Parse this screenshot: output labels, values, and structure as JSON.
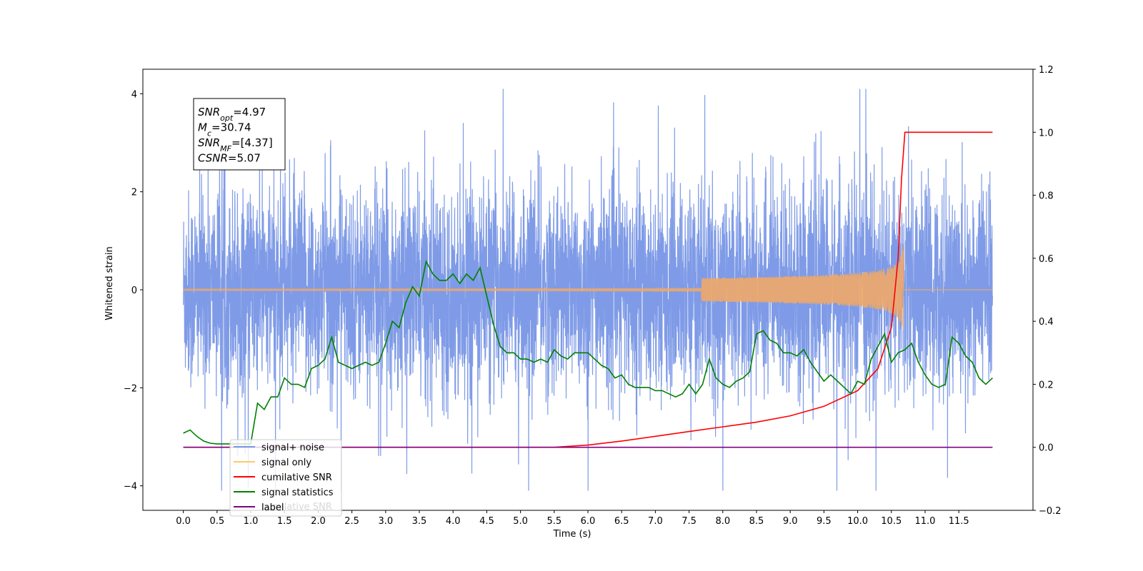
{
  "chart_data": {
    "type": "line",
    "xlabel": "Time (s)",
    "ylabel": "Whitened strain",
    "xlim": [
      -0.6,
      12.6
    ],
    "ylim": [
      -4.5,
      4.5
    ],
    "y2lim": [
      -0.2,
      1.2
    ],
    "xticks": [
      "0.0",
      "0.5",
      "1.0",
      "1.5",
      "2.0",
      "2.5",
      "3.0",
      "3.5",
      "4.0",
      "4.5",
      "5.0",
      "5.5",
      "6.0",
      "6.5",
      "7.0",
      "7.5",
      "8.0",
      "8.5",
      "9.0",
      "9.5",
      "10.0",
      "10.5",
      "11.0",
      "11.5"
    ],
    "yticks": [
      "−4",
      "−2",
      "0",
      "2",
      "4"
    ],
    "y2ticks": [
      "−0.2",
      "0.0",
      "0.2",
      "0.4",
      "0.6",
      "0.8",
      "1.0",
      "1.2"
    ],
    "annotation": {
      "lines": [
        {
          "sym": "SNR",
          "sub": "opt",
          "val": "=4.97"
        },
        {
          "sym": "M",
          "sub": "c",
          "val": "=30.74"
        },
        {
          "sym": "SNR",
          "sub": "MF",
          "val": "=[4.37]"
        },
        {
          "sym": "CSNR",
          "sub": "",
          "val": "=5.07"
        }
      ]
    },
    "legend": {
      "placement": "lower-left",
      "entries": [
        {
          "label": "signal+ noise",
          "color": "#7896e6"
        },
        {
          "label": "signal only",
          "color": "#ffc864"
        },
        {
          "label": "cumilative SNR",
          "color": "#ff0000"
        },
        {
          "label": "signal statistics",
          "color": "#008000"
        },
        {
          "label": "label",
          "color": "#800080"
        }
      ],
      "hidden_label": "cumilative SNR"
    },
    "series": [
      {
        "name": "signal+ noise",
        "axis": "left",
        "color": "#7896e6",
        "x_range": [
          0.0,
          12.0
        ],
        "envelope": {
          "typical_amplitude": 1.0,
          "max": 4.1,
          "min": -4.1
        }
      },
      {
        "name": "signal only",
        "axis": "left",
        "color": "#f0a868",
        "x_range": [
          0.0,
          12.0
        ],
        "chirp_end": 10.68,
        "peak_amplitude": 1.25
      },
      {
        "name": "cumilative SNR",
        "axis": "right",
        "color": "#ff0000",
        "x": [
          0.0,
          5.5,
          6.0,
          6.5,
          7.0,
          7.5,
          8.0,
          8.5,
          9.0,
          9.5,
          10.0,
          10.3,
          10.5,
          10.6,
          10.65,
          10.7,
          11.0,
          11.5,
          12.0
        ],
        "y": [
          0.0,
          0.0,
          0.007,
          0.02,
          0.035,
          0.05,
          0.065,
          0.08,
          0.1,
          0.13,
          0.18,
          0.25,
          0.38,
          0.6,
          0.85,
          1.0,
          1.0,
          1.0,
          1.0
        ]
      },
      {
        "name": "signal statistics",
        "axis": "right",
        "color": "#008000",
        "x": [
          0.0,
          0.1,
          0.2,
          0.3,
          0.4,
          0.5,
          0.6,
          0.7,
          0.8,
          0.9,
          1.0,
          1.1,
          1.2,
          1.3,
          1.4,
          1.5,
          1.6,
          1.7,
          1.8,
          1.9,
          2.0,
          2.1,
          2.2,
          2.3,
          2.4,
          2.5,
          2.6,
          2.7,
          2.8,
          2.9,
          3.0,
          3.1,
          3.2,
          3.3,
          3.4,
          3.5,
          3.6,
          3.7,
          3.8,
          3.9,
          4.0,
          4.1,
          4.2,
          4.3,
          4.4,
          4.5,
          4.6,
          4.7,
          4.8,
          4.9,
          5.0,
          5.1,
          5.2,
          5.3,
          5.4,
          5.5,
          5.6,
          5.7,
          5.8,
          5.9,
          6.0,
          6.1,
          6.2,
          6.3,
          6.4,
          6.5,
          6.6,
          6.7,
          6.8,
          6.9,
          7.0,
          7.1,
          7.2,
          7.3,
          7.4,
          7.5,
          7.6,
          7.7,
          7.8,
          7.9,
          8.0,
          8.1,
          8.2,
          8.3,
          8.4,
          8.5,
          8.6,
          8.7,
          8.8,
          8.9,
          9.0,
          9.1,
          9.2,
          9.3,
          9.4,
          9.5,
          9.6,
          9.7,
          9.8,
          9.9,
          10.0,
          10.1,
          10.2,
          10.3,
          10.4,
          10.5,
          10.6,
          10.7,
          10.8,
          10.9,
          11.0,
          11.1,
          11.2,
          11.3,
          11.4,
          11.5,
          11.6,
          11.7,
          11.8,
          11.9,
          12.0
        ],
        "y": [
          0.045,
          0.055,
          0.035,
          0.02,
          0.013,
          0.011,
          0.011,
          0.011,
          0.011,
          0.011,
          0.011,
          0.14,
          0.12,
          0.16,
          0.16,
          0.22,
          0.2,
          0.2,
          0.19,
          0.25,
          0.26,
          0.28,
          0.35,
          0.27,
          0.26,
          0.25,
          0.26,
          0.27,
          0.26,
          0.27,
          0.33,
          0.4,
          0.38,
          0.46,
          0.51,
          0.48,
          0.59,
          0.55,
          0.53,
          0.53,
          0.55,
          0.52,
          0.55,
          0.53,
          0.57,
          0.48,
          0.39,
          0.32,
          0.3,
          0.3,
          0.28,
          0.28,
          0.27,
          0.28,
          0.27,
          0.31,
          0.29,
          0.28,
          0.3,
          0.3,
          0.3,
          0.28,
          0.26,
          0.25,
          0.22,
          0.23,
          0.2,
          0.19,
          0.19,
          0.19,
          0.18,
          0.18,
          0.17,
          0.16,
          0.17,
          0.2,
          0.17,
          0.2,
          0.28,
          0.22,
          0.2,
          0.19,
          0.21,
          0.22,
          0.24,
          0.36,
          0.37,
          0.34,
          0.33,
          0.3,
          0.3,
          0.29,
          0.31,
          0.27,
          0.24,
          0.21,
          0.23,
          0.21,
          0.19,
          0.17,
          0.21,
          0.2,
          0.28,
          0.32,
          0.36,
          0.27,
          0.3,
          0.31,
          0.33,
          0.27,
          0.23,
          0.2,
          0.19,
          0.2,
          0.35,
          0.33,
          0.29,
          0.27,
          0.22,
          0.2,
          0.22
        ]
      },
      {
        "name": "label",
        "axis": "right",
        "color": "#800080",
        "x": [
          0.0,
          12.0
        ],
        "y": [
          0.0,
          0.0
        ]
      }
    ]
  }
}
